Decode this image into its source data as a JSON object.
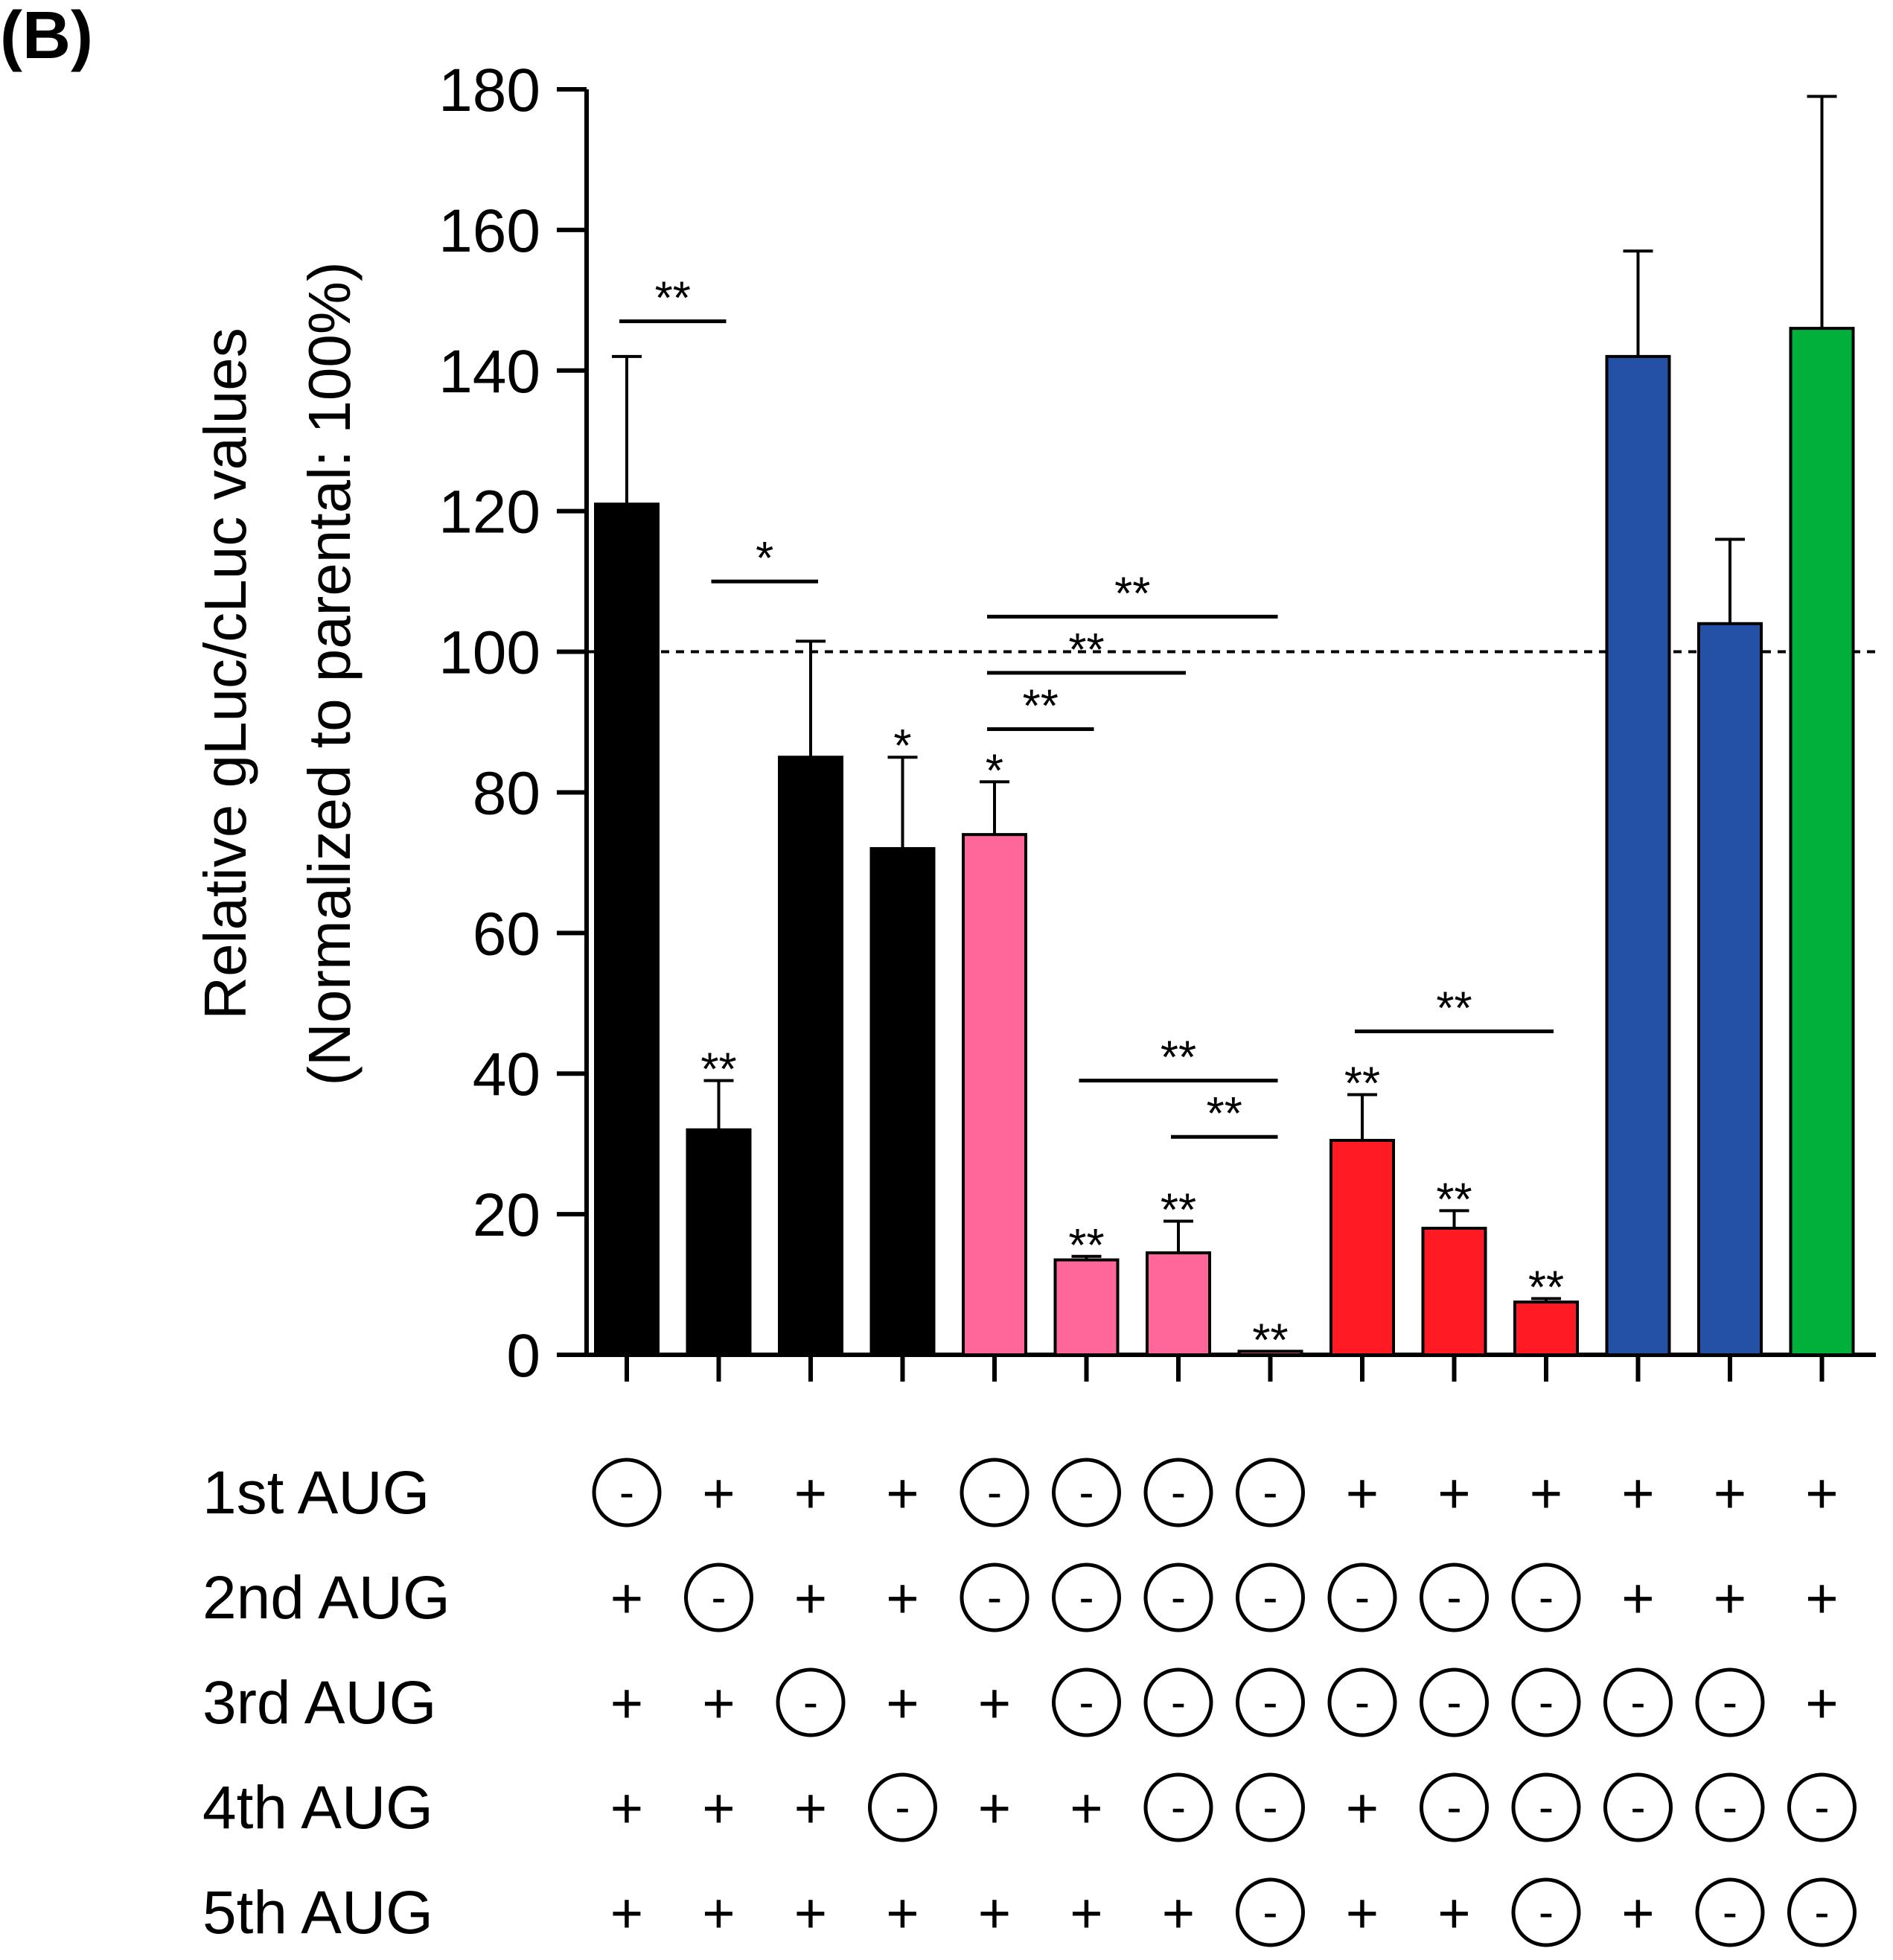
{
  "panel_label": "(B)",
  "chart_data": {
    "type": "bar",
    "title": "",
    "ylabel_line1": "Relative gLuc/cLuc values",
    "ylabel_line2": "(Normalized to parental: 100%)",
    "ylim": [
      0,
      180
    ],
    "yticks": [
      0,
      20,
      40,
      60,
      80,
      100,
      120,
      140,
      160,
      180
    ],
    "reference_line": 100,
    "colors": {
      "black": "#000000",
      "pink": "#ff6699",
      "red": "#ff1a24",
      "blue": "#2451a6",
      "green": "#00b03a"
    },
    "bars": [
      {
        "value": 121,
        "error": 21,
        "color": "black",
        "sig": ""
      },
      {
        "value": 32,
        "error": 7,
        "color": "black",
        "sig": "**"
      },
      {
        "value": 85,
        "error": 16.5,
        "color": "black",
        "sig": ""
      },
      {
        "value": 72,
        "error": 13,
        "color": "black",
        "sig": "*"
      },
      {
        "value": 74,
        "error": 7.5,
        "color": "pink",
        "sig": "*"
      },
      {
        "value": 13.5,
        "error": 0.5,
        "color": "pink",
        "sig": "**"
      },
      {
        "value": 14.5,
        "error": 4.5,
        "color": "pink",
        "sig": "**"
      },
      {
        "value": 0.5,
        "error": 0,
        "color": "pink",
        "sig": "**"
      },
      {
        "value": 30.5,
        "error": 6.5,
        "color": "red",
        "sig": "**"
      },
      {
        "value": 18,
        "error": 2.5,
        "color": "red",
        "sig": "**"
      },
      {
        "value": 7.5,
        "error": 0.5,
        "color": "red",
        "sig": "**"
      },
      {
        "value": 142,
        "error": 15,
        "color": "blue",
        "sig": ""
      },
      {
        "value": 104,
        "error": 12,
        "color": "blue",
        "sig": ""
      },
      {
        "value": 146,
        "error": 33,
        "color": "green",
        "sig": ""
      }
    ],
    "comparisons": [
      {
        "from": 0,
        "to": 1,
        "y": 147,
        "label": "**"
      },
      {
        "from": 1,
        "to": 2,
        "y": 110,
        "label": "*"
      },
      {
        "from": 4,
        "to": 7,
        "y": 105,
        "label": "**"
      },
      {
        "from": 4,
        "to": 6,
        "y": 97,
        "label": "**"
      },
      {
        "from": 4,
        "to": 5,
        "y": 89,
        "label": "**"
      },
      {
        "from": 5,
        "to": 7,
        "y": 39,
        "label": "**"
      },
      {
        "from": 6,
        "to": 7,
        "y": 31,
        "label": "**"
      },
      {
        "from": 8,
        "to": 10,
        "y": 46,
        "label": "**"
      }
    ],
    "aug_rows": [
      {
        "label": "1st AUG",
        "states": [
          "-",
          "+",
          "+",
          "+",
          "-",
          "-",
          "-",
          "-",
          "+",
          "+",
          "+",
          "+",
          "+",
          "+"
        ]
      },
      {
        "label": "2nd AUG",
        "states": [
          "+",
          "-",
          "+",
          "+",
          "-",
          "-",
          "-",
          "-",
          "-",
          "-",
          "-",
          "+",
          "+",
          "+"
        ]
      },
      {
        "label": "3rd AUG",
        "states": [
          "+",
          "+",
          "-",
          "+",
          "+",
          "-",
          "-",
          "-",
          "-",
          "-",
          "-",
          "-",
          "-",
          "+"
        ]
      },
      {
        "label": "4th AUG",
        "states": [
          "+",
          "+",
          "+",
          "-",
          "+",
          "+",
          "-",
          "-",
          "+",
          "-",
          "-",
          "-",
          "-",
          "-"
        ]
      },
      {
        "label": "5th AUG",
        "states": [
          "+",
          "+",
          "+",
          "+",
          "+",
          "+",
          "+",
          "-",
          "+",
          "+",
          "-",
          "+",
          "-",
          "-"
        ]
      }
    ]
  }
}
